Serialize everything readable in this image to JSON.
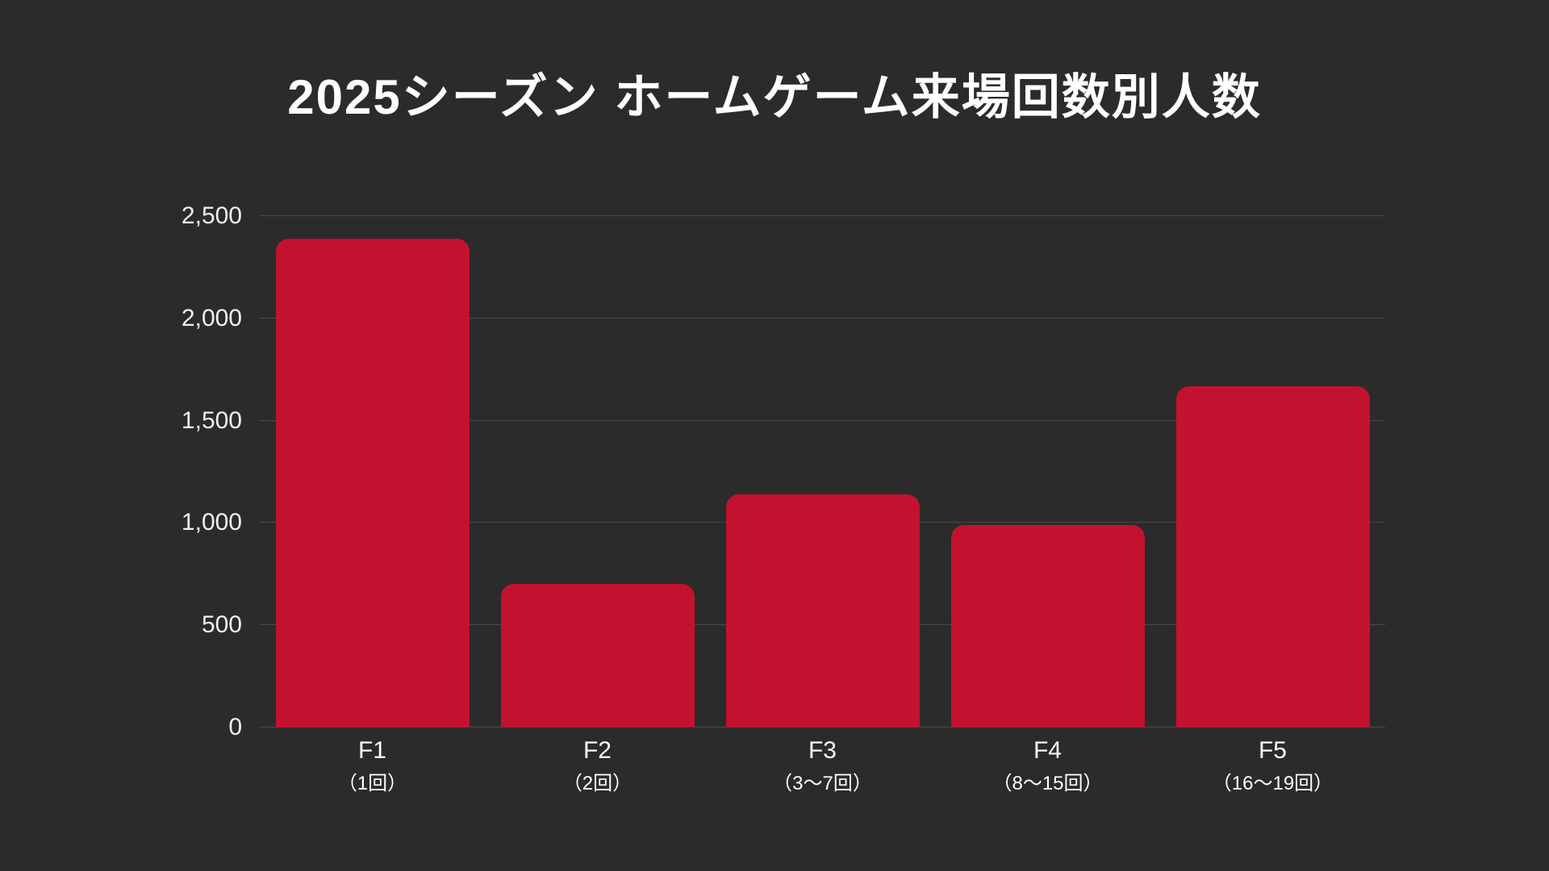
{
  "colors": {
    "background": "#2b2b2b",
    "bar": "#c3122f",
    "gridline": "rgba(255,255,255,0.14)",
    "text": "#ffffff"
  },
  "chart_data": {
    "type": "bar",
    "title": "2025シーズン ホームゲーム来場回数別人数",
    "categories": [
      "F1",
      "F2",
      "F3",
      "F4",
      "F5"
    ],
    "sublabels": [
      "（1回）",
      "（2回）",
      "（3〜7回）",
      "（8〜15回）",
      "（16〜19回）"
    ],
    "values": [
      2390,
      700,
      1140,
      990,
      1670
    ],
    "xlabel": "",
    "ylabel": "",
    "ylim": [
      0,
      2500
    ],
    "yticks": [
      0,
      500,
      1000,
      1500,
      2000,
      2500
    ],
    "ytick_labels": [
      "0",
      "500",
      "1,000",
      "1,500",
      "2,000",
      "2,500"
    ],
    "grid": true,
    "legend": "none",
    "bar_color": "#c3122f"
  }
}
